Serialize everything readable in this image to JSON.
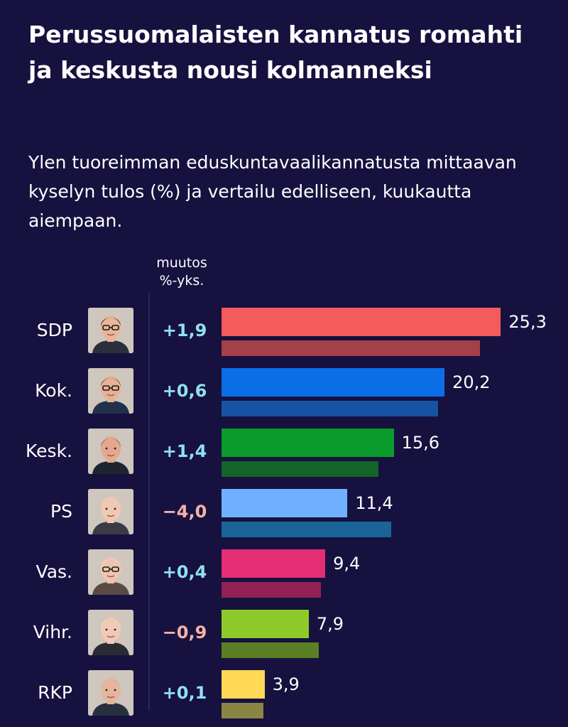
{
  "title": "Perussuomalaisten kannatus romahti ja keskusta nousi kolmanneksi",
  "subtitle": "Ylen tuoreimman eduskuntavaalikannatusta mittaavan kyselyn tulos (%) ja vertailu edelliseen, kuukautta aiempaan.",
  "column_header": {
    "line1": "muutos",
    "line2": "%-yks."
  },
  "chart_data": {
    "type": "bar",
    "orientation": "horizontal",
    "categories": [
      "SDP",
      "Kok.",
      "Kesk.",
      "PS",
      "Vas.",
      "Vihr.",
      "RKP"
    ],
    "series": [
      {
        "values": [
          25.3,
          20.2,
          15.6,
          11.4,
          9.4,
          7.9,
          3.9
        ]
      },
      {
        "values": [
          23.4,
          19.6,
          14.2,
          15.4,
          9.0,
          8.8,
          3.8
        ]
      }
    ],
    "changes": [
      1.9,
      0.6,
      1.4,
      -4.0,
      0.4,
      -0.9,
      0.1
    ]
  },
  "rows": [
    {
      "party": "SDP",
      "value_label": "25,3",
      "change_label": "+1,9",
      "color": "#f45b5b",
      "prev_color": "#a4404a"
    },
    {
      "party": "Kok.",
      "value_label": "20,2",
      "change_label": "+0,6",
      "color": "#0c6ee6",
      "prev_color": "#1753a3"
    },
    {
      "party": "Kesk.",
      "value_label": "15,6",
      "change_label": "+1,4",
      "color": "#0b9a2c",
      "prev_color": "#146328"
    },
    {
      "party": "PS",
      "value_label": "11,4",
      "change_label": "−4,0",
      "color": "#6fb1ff",
      "prev_color": "#1a6497"
    },
    {
      "party": "Vas.",
      "value_label": "9,4",
      "change_label": "+0,4",
      "color": "#e32d74",
      "prev_color": "#922254"
    },
    {
      "party": "Vihr.",
      "value_label": "7,9",
      "change_label": "−0,9",
      "color": "#8ccb2a",
      "prev_color": "#5b7f25"
    },
    {
      "party": "RKP",
      "value_label": "3,9",
      "change_label": "+0,1",
      "color": "#ffd857",
      "prev_color": "#8b8545"
    }
  ]
}
